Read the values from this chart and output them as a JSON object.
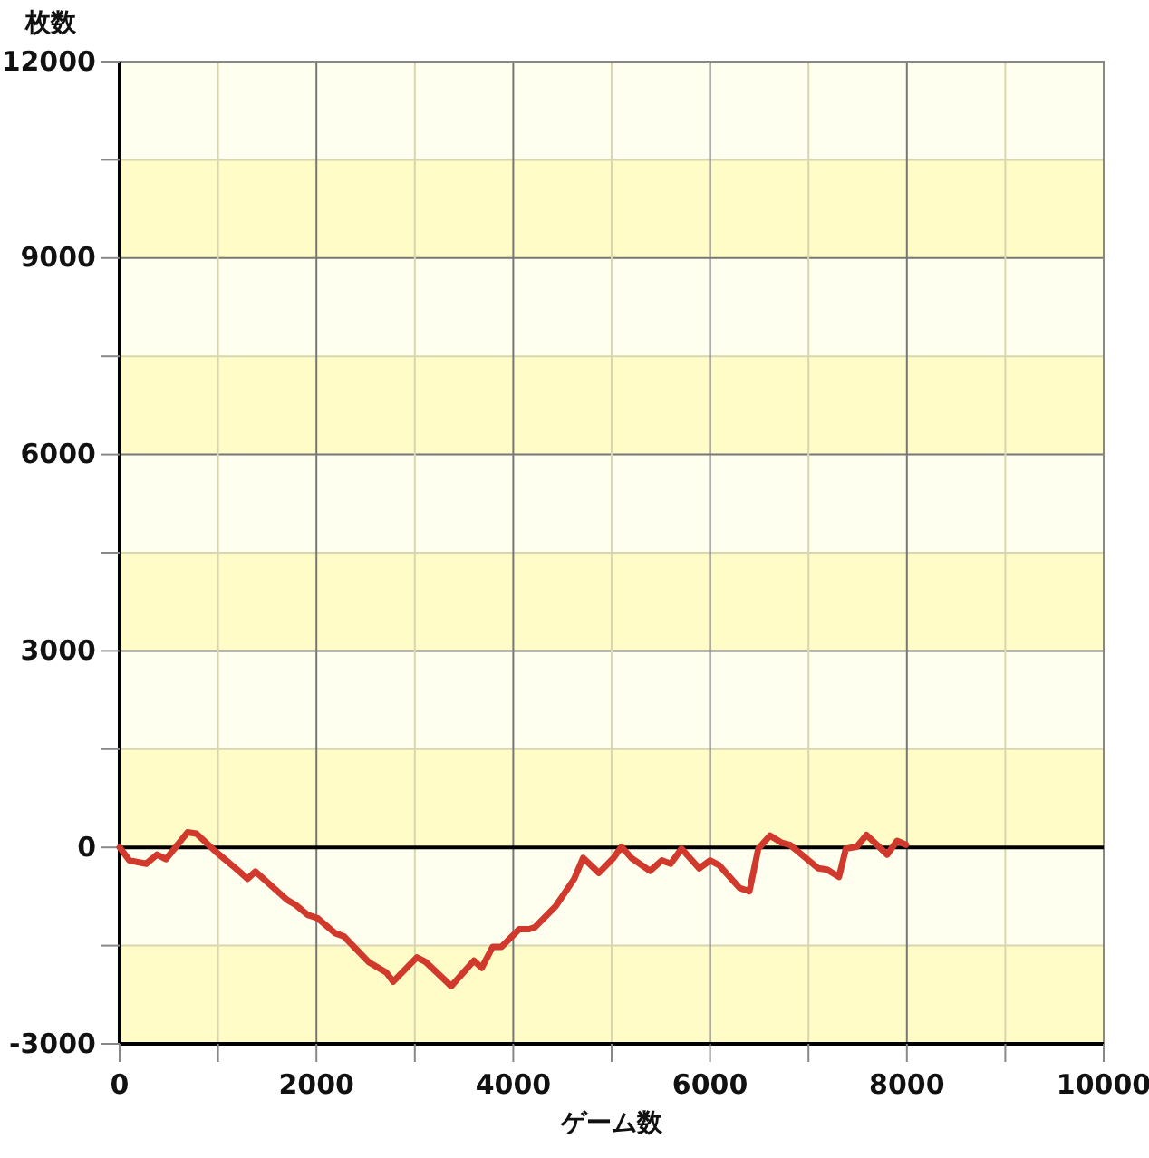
{
  "chart_data": {
    "type": "line",
    "xlabel": "ゲーム数",
    "ylabel": "枚数",
    "x": [
      0,
      100,
      270,
      380,
      470,
      690,
      780,
      980,
      1180,
      1300,
      1380,
      1700,
      1790,
      1910,
      2010,
      2190,
      2280,
      2530,
      2710,
      2780,
      3020,
      3110,
      3370,
      3600,
      3680,
      3790,
      3880,
      4060,
      4160,
      4220,
      4430,
      4620,
      4710,
      4870,
      5020,
      5100,
      5200,
      5390,
      5510,
      5600,
      5710,
      5890,
      6000,
      6090,
      6300,
      6400,
      6490,
      6610,
      6730,
      6810,
      7100,
      7190,
      7310,
      7380,
      7490,
      7590,
      7800,
      7900,
      7990
    ],
    "series": [
      {
        "color": "#d0392b",
        "values": [
          0,
          -200,
          -250,
          -110,
          -180,
          230,
          210,
          -70,
          -320,
          -480,
          -370,
          -800,
          -880,
          -1030,
          -1080,
          -1310,
          -1360,
          -1750,
          -1910,
          -2050,
          -1680,
          -1750,
          -2120,
          -1730,
          -1840,
          -1520,
          -1520,
          -1250,
          -1250,
          -1220,
          -900,
          -480,
          -160,
          -390,
          -160,
          10,
          -160,
          -360,
          -200,
          -250,
          -20,
          -320,
          -200,
          -270,
          -620,
          -670,
          -20,
          180,
          70,
          40,
          -320,
          -340,
          -450,
          -20,
          10,
          190,
          -110,
          100,
          40
        ]
      }
    ],
    "xlim": [
      0,
      10000
    ],
    "xticks": [
      0,
      {
        "value": 1000,
        "label": null
      },
      2000,
      {
        "value": 3000,
        "label": null
      },
      4000,
      {
        "value": 5000,
        "label": null
      },
      6000,
      {
        "value": 7000,
        "label": null
      },
      8000,
      {
        "value": 9000,
        "label": null
      },
      10000
    ],
    "ylim": [
      -3000,
      12000
    ],
    "yticks": [
      -3000,
      {
        "value": -1500,
        "label": null
      },
      0,
      {
        "value": 1500,
        "label": null
      },
      3000,
      {
        "value": 4500,
        "label": null
      },
      6000,
      {
        "value": 7500,
        "label": null
      },
      9000,
      {
        "value": 10500,
        "label": null
      },
      12000
    ],
    "grid": true,
    "line_style": "solid",
    "ref_lines": [
      {
        "axis": "y",
        "value": 0,
        "color": "#000000"
      }
    ]
  }
}
